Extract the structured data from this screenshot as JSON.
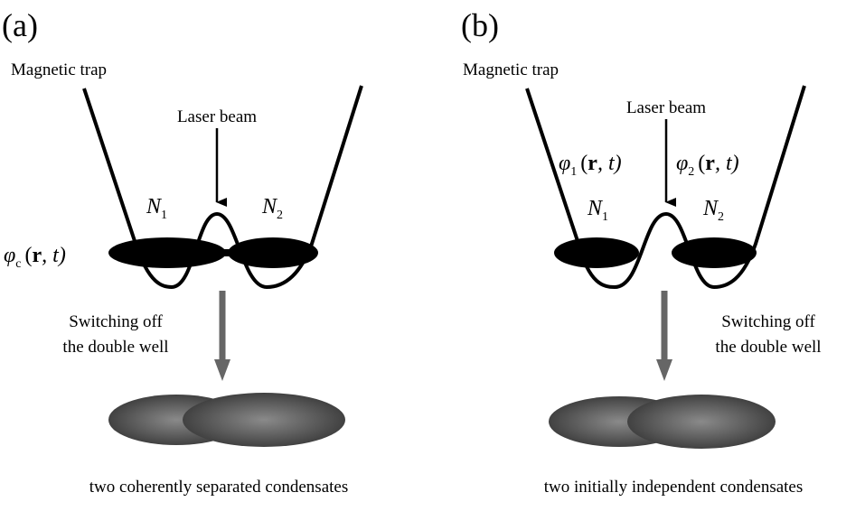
{
  "panels": [
    {
      "label": "(a)",
      "trap_label": "Magnetic trap",
      "laser_label": "Laser beam",
      "wells": [
        {
          "symbol": "N",
          "sub": "1"
        },
        {
          "symbol": "N",
          "sub": "2"
        }
      ],
      "wavefunctions": [
        {
          "symbol": "φ",
          "sub": "c",
          "args": [
            "(",
            "r",
            ", t)"
          ]
        }
      ],
      "process": [
        "Switching off",
        "the double well"
      ],
      "caption": "two coherently separated condensates"
    },
    {
      "label": "(b)",
      "trap_label": "Magnetic trap",
      "laser_label": "Laser beam",
      "wells": [
        {
          "symbol": "N",
          "sub": "1"
        },
        {
          "symbol": "N",
          "sub": "2"
        }
      ],
      "wavefunctions": [
        {
          "symbol": "φ",
          "sub": "1",
          "args": [
            "(",
            "r",
            ", t)"
          ]
        },
        {
          "symbol": "φ",
          "sub": "2",
          "args": [
            "(",
            "r",
            ", t)"
          ]
        }
      ],
      "process": [
        "Switching off",
        "the double well"
      ],
      "caption": "two initially independent condensates"
    }
  ]
}
